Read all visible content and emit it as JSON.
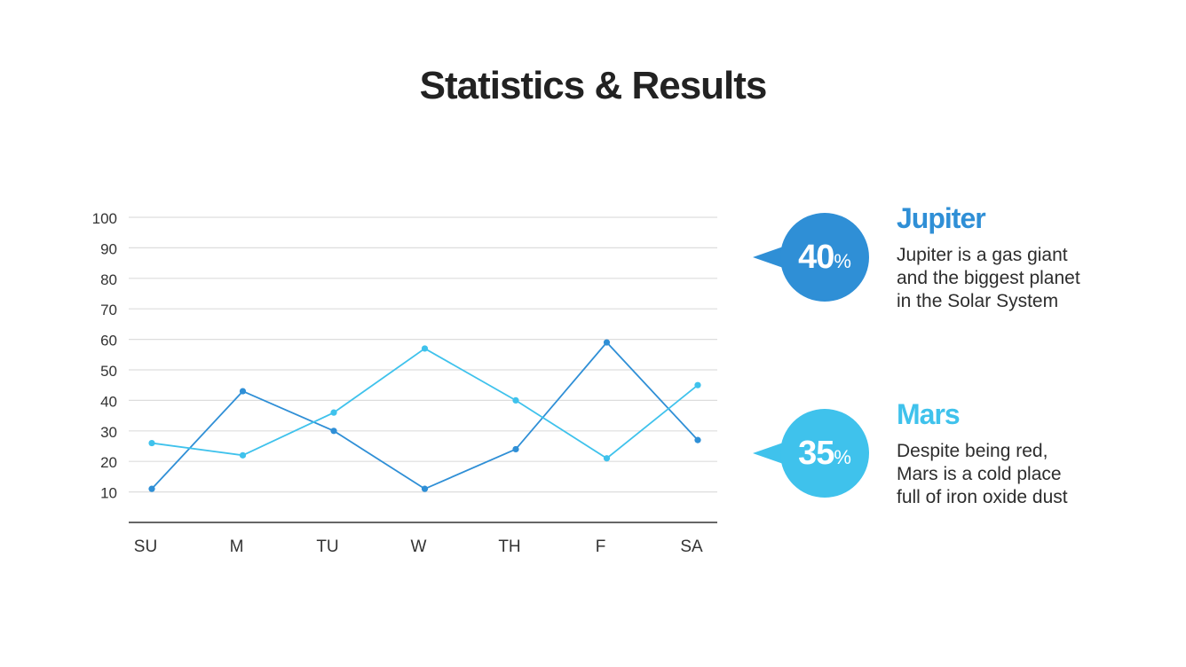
{
  "title": "Statistics & Results",
  "colors": {
    "dark_blue": "#2f8fd6",
    "light_blue": "#3fc2ec",
    "grid": "#dddddd",
    "axis": "#333333"
  },
  "chart_data": {
    "type": "line",
    "categories": [
      "SU",
      "M",
      "TU",
      "W",
      "TH",
      "F",
      "SA"
    ],
    "yticks": [
      10,
      20,
      30,
      40,
      50,
      60,
      70,
      80,
      90,
      100
    ],
    "ylim": [
      0,
      100
    ],
    "grid": true,
    "series": [
      {
        "color": "#2f8fd6",
        "values": [
          11,
          43,
          30,
          11,
          24,
          59,
          27
        ]
      },
      {
        "color": "#3fc2ec",
        "values": [
          26,
          22,
          36,
          57,
          40,
          21,
          45
        ]
      }
    ]
  },
  "callouts": [
    {
      "value": "40",
      "unit": "%",
      "color": "#2f8fd6",
      "heading": "Jupiter",
      "lines": [
        "Jupiter is a gas giant",
        "and the biggest planet",
        "in the Solar System"
      ]
    },
    {
      "value": "35",
      "unit": "%",
      "color": "#3fc2ec",
      "heading": "Mars",
      "lines": [
        "Despite being red,",
        "Mars is a cold place",
        "full of iron oxide dust"
      ]
    }
  ]
}
